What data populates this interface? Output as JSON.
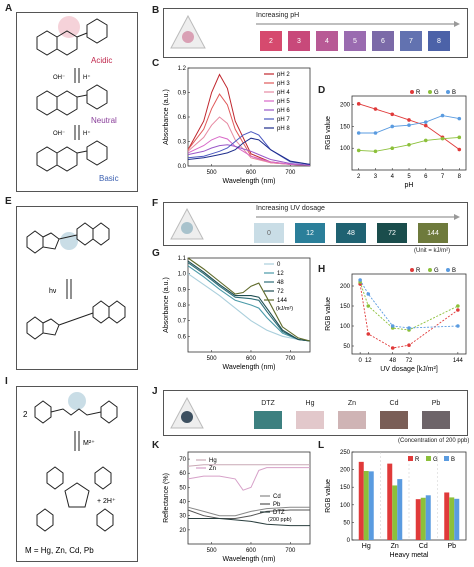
{
  "panels": {
    "A": "A",
    "B": "B",
    "C": "C",
    "D": "D",
    "E": "E",
    "F": "F",
    "G": "G",
    "H": "H",
    "I": "I",
    "J": "J",
    "K": "K",
    "L": "L"
  },
  "panelA": {
    "acidic": "Acidic",
    "neutral": "Neutral",
    "basic": "Basic",
    "oh": "OH⁻",
    "h": "H⁺"
  },
  "panelE": {
    "hv": "hν"
  },
  "panelI": {
    "coef": "2",
    "metal": "M²⁺",
    "product": "+ 2H⁺",
    "mlist": "M = Hg, Zn, Cd, Pb"
  },
  "colors": {
    "ph_swatches": [
      "#d64a6e",
      "#c8497a",
      "#b85a95",
      "#9a6bb0",
      "#7b6aa8",
      "#6272b0",
      "#4c62a8"
    ],
    "uv_swatches": [
      "#c9dde6",
      "#2b7f9a",
      "#1f6272",
      "#1a4d4c",
      "#6e7a3c"
    ],
    "metal_swatches": [
      "#3d8080",
      "#e2c8cb",
      "#cfb4b5",
      "#7a5e57",
      "#6d6469"
    ],
    "r": "#e03a3a",
    "g": "#8cc03a",
    "b": "#5a9be0"
  },
  "panelB": {
    "arrow_label": "Increasing pH",
    "swatch_labels": [
      "2",
      "3",
      "4",
      "5",
      "6",
      "7",
      "8"
    ]
  },
  "panelF": {
    "arrow_label": "Increasing UV dosage",
    "swatch_labels": [
      "0",
      "12",
      "48",
      "72",
      "144"
    ],
    "unit": "(Unit = kJ/m²)"
  },
  "panelJ": {
    "headers": [
      "DTZ",
      "Hg",
      "Zn",
      "Cd",
      "Pb"
    ],
    "note": "(Concentration of 200 ppb)"
  },
  "chart_data": [
    {
      "panel": "C",
      "type": "line",
      "xlabel": "Wavelength (nm)",
      "ylabel": "Absorbance (a.u.)",
      "xlim": [
        440,
        750
      ],
      "ylim": [
        0,
        1.2
      ],
      "xticks": [
        500,
        600,
        700
      ],
      "yticks": [
        0.0,
        0.3,
        0.6,
        0.9,
        1.2
      ],
      "series": [
        {
          "name": "pH 2",
          "color": "#c0262d",
          "x": [
            440,
            480,
            500,
            520,
            540,
            560,
            600,
            650,
            700,
            750
          ],
          "y": [
            0.2,
            0.55,
            0.9,
            1.12,
            0.95,
            0.55,
            0.15,
            0.05,
            0.02,
            0.01
          ]
        },
        {
          "name": "pH 3",
          "color": "#e05a5a",
          "x": [
            440,
            480,
            500,
            520,
            540,
            560,
            600,
            650,
            700,
            750
          ],
          "y": [
            0.2,
            0.45,
            0.7,
            0.88,
            0.75,
            0.45,
            0.12,
            0.04,
            0.02,
            0.01
          ]
        },
        {
          "name": "pH 4",
          "color": "#e68aa2",
          "x": [
            440,
            480,
            500,
            520,
            540,
            560,
            600,
            650,
            700,
            750
          ],
          "y": [
            0.18,
            0.35,
            0.5,
            0.6,
            0.52,
            0.32,
            0.1,
            0.04,
            0.02,
            0.01
          ]
        },
        {
          "name": "pH 5",
          "color": "#d868c8",
          "x": [
            440,
            480,
            500,
            520,
            540,
            560,
            600,
            650,
            700,
            750
          ],
          "y": [
            0.16,
            0.25,
            0.32,
            0.36,
            0.33,
            0.24,
            0.12,
            0.05,
            0.02,
            0.01
          ]
        },
        {
          "name": "pH 6",
          "color": "#9a58c8",
          "x": [
            440,
            480,
            500,
            520,
            540,
            560,
            600,
            650,
            700,
            750
          ],
          "y": [
            0.14,
            0.18,
            0.22,
            0.25,
            0.26,
            0.24,
            0.18,
            0.08,
            0.03,
            0.01
          ]
        },
        {
          "name": "pH 7",
          "color": "#4a58c0",
          "x": [
            440,
            480,
            500,
            520,
            540,
            560,
            580,
            600,
            620,
            650,
            700,
            750
          ],
          "y": [
            0.1,
            0.12,
            0.15,
            0.18,
            0.22,
            0.3,
            0.38,
            0.42,
            0.38,
            0.2,
            0.05,
            0.02
          ]
        },
        {
          "name": "pH 8",
          "color": "#1e2d8c",
          "x": [
            440,
            480,
            500,
            520,
            540,
            560,
            580,
            600,
            620,
            650,
            700,
            750
          ],
          "y": [
            0.08,
            0.1,
            0.12,
            0.14,
            0.16,
            0.2,
            0.28,
            0.34,
            0.32,
            0.2,
            0.06,
            0.02
          ]
        }
      ]
    },
    {
      "panel": "D",
      "type": "line",
      "xlabel": "pH",
      "ylabel": "RGB value",
      "xlim": [
        1.6,
        8.4
      ],
      "ylim": [
        50,
        220
      ],
      "xticks": [
        2,
        3,
        4,
        5,
        6,
        7,
        8
      ],
      "yticks": [
        100,
        150,
        200
      ],
      "x": [
        2,
        3,
        4,
        5,
        6,
        7,
        8
      ],
      "series": [
        {
          "name": "R",
          "color": "#e03a3a",
          "values": [
            202,
            190,
            178,
            165,
            152,
            125,
            97
          ]
        },
        {
          "name": "G",
          "color": "#8cc03a",
          "values": [
            95,
            93,
            100,
            108,
            118,
            122,
            125
          ]
        },
        {
          "name": "B",
          "color": "#5a9be0",
          "values": [
            135,
            135,
            150,
            153,
            160,
            175,
            168
          ]
        }
      ]
    },
    {
      "panel": "G",
      "type": "line",
      "xlabel": "Wavelength (nm)",
      "ylabel": "Absorbance (a.u.)",
      "xlim": [
        440,
        750
      ],
      "ylim": [
        0.5,
        1.1
      ],
      "xticks": [
        500,
        600,
        700
      ],
      "yticks": [
        0.6,
        0.7,
        0.8,
        0.9,
        1.0,
        1.1
      ],
      "legend_unit": "(kJ/m²)",
      "series": [
        {
          "name": "0",
          "color": "#aacfdc",
          "x": [
            440,
            480,
            520,
            560,
            600,
            640,
            680,
            720,
            750
          ],
          "y": [
            1.0,
            0.93,
            0.86,
            0.78,
            0.7,
            0.64,
            0.6,
            0.58,
            0.57
          ]
        },
        {
          "name": "12",
          "color": "#4a9aa8",
          "x": [
            440,
            480,
            520,
            560,
            600,
            620,
            640,
            680,
            720,
            750
          ],
          "y": [
            1.05,
            0.98,
            0.9,
            0.83,
            0.8,
            0.78,
            0.72,
            0.62,
            0.58,
            0.57
          ]
        },
        {
          "name": "48",
          "color": "#2e6e78",
          "x": [
            440,
            480,
            520,
            560,
            600,
            620,
            640,
            680,
            720,
            750
          ],
          "y": [
            1.07,
            1.0,
            0.92,
            0.85,
            0.84,
            0.83,
            0.76,
            0.63,
            0.58,
            0.57
          ]
        },
        {
          "name": "72",
          "color": "#1f4e52",
          "x": [
            440,
            480,
            520,
            560,
            600,
            620,
            640,
            680,
            720,
            750
          ],
          "y": [
            1.08,
            1.01,
            0.93,
            0.86,
            0.86,
            0.85,
            0.78,
            0.64,
            0.58,
            0.57
          ]
        },
        {
          "name": "144",
          "color": "#5f6a2a",
          "x": [
            440,
            480,
            520,
            560,
            580,
            600,
            620,
            640,
            680,
            720,
            750
          ],
          "y": [
            1.1,
            1.03,
            0.95,
            0.87,
            0.88,
            0.92,
            0.94,
            0.85,
            0.66,
            0.59,
            0.57
          ]
        }
      ]
    },
    {
      "panel": "H",
      "type": "line",
      "xlabel": "UV dosage [kJ/m²]",
      "ylabel": "RGB value",
      "xlim": [
        -12,
        156
      ],
      "ylim": [
        30,
        230
      ],
      "xticks": [
        0,
        12,
        48,
        72,
        144
      ],
      "yticks": [
        50,
        100,
        150,
        200
      ],
      "x": [
        0,
        12,
        48,
        72,
        144
      ],
      "series": [
        {
          "name": "R",
          "color": "#e03a3a",
          "values": [
            205,
            80,
            45,
            52,
            140
          ]
        },
        {
          "name": "G",
          "color": "#8cc03a",
          "values": [
            210,
            150,
            95,
            90,
            150
          ]
        },
        {
          "name": "B",
          "color": "#5a9be0",
          "values": [
            215,
            180,
            100,
            95,
            100
          ]
        }
      ]
    },
    {
      "panel": "K",
      "type": "line",
      "xlabel": "Wavelength (nm)",
      "ylabel": "Reflectance (%)",
      "xlim": [
        440,
        750
      ],
      "ylim": [
        10,
        75
      ],
      "xticks": [
        500,
        600,
        700
      ],
      "yticks": [
        20,
        30,
        40,
        50,
        60,
        70
      ],
      "legend_unit": "(200 ppb)",
      "series": [
        {
          "name": "Hg",
          "color": "#c9a9b5",
          "x": [
            440,
            480,
            520,
            560,
            600,
            640,
            700,
            750
          ],
          "y": [
            65,
            66,
            66,
            66,
            66,
            66,
            66,
            66
          ]
        },
        {
          "name": "Zn",
          "color": "#d6a0c8",
          "x": [
            440,
            480,
            520,
            560,
            580,
            600,
            620,
            640,
            700,
            750
          ],
          "y": [
            56,
            58,
            58,
            56,
            48,
            50,
            62,
            64,
            64,
            64
          ]
        },
        {
          "name": "Cd",
          "color": "#888888",
          "x": [
            440,
            480,
            520,
            560,
            600,
            640,
            700,
            750
          ],
          "y": [
            36,
            33,
            30,
            30,
            33,
            35,
            36,
            36
          ]
        },
        {
          "name": "Pb",
          "color": "#555555",
          "x": [
            440,
            480,
            520,
            560,
            600,
            640,
            700,
            750
          ],
          "y": [
            34,
            30,
            28,
            28,
            30,
            33,
            34,
            34
          ]
        },
        {
          "name": "DTZ",
          "color": "#2a3e3e",
          "x": [
            440,
            480,
            520,
            560,
            600,
            640,
            700,
            750
          ],
          "y": [
            28,
            28,
            28,
            27,
            26,
            24,
            23,
            23
          ]
        }
      ]
    },
    {
      "panel": "L",
      "type": "bar",
      "xlabel": "Heavy metal",
      "ylabel": "RGB value",
      "ylim": [
        0,
        250
      ],
      "yticks": [
        0,
        50,
        100,
        150,
        200,
        250
      ],
      "categories": [
        "Hg",
        "Zn",
        "Cd",
        "Pb"
      ],
      "series": [
        {
          "name": "R",
          "color": "#e03a3a",
          "values": [
            222,
            217,
            116,
            135
          ]
        },
        {
          "name": "G",
          "color": "#8cc03a",
          "values": [
            196,
            155,
            120,
            121
          ]
        },
        {
          "name": "B",
          "color": "#5a9be0",
          "values": [
            195,
            173,
            127,
            117
          ]
        }
      ]
    }
  ]
}
